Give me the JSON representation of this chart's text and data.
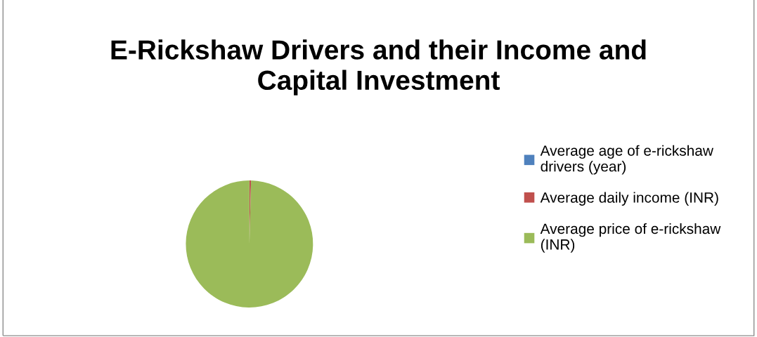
{
  "chart_data": {
    "type": "pie",
    "title": "E-Rickshaw Drivers and their Income and\nCapital Investment",
    "categories": [
      "Average age of e-rickshaw drivers (year)",
      "Average daily income (INR)",
      "Average price of e-rickshaw (INR)"
    ],
    "values": [
      null,
      0.4,
      99.57
    ],
    "colors": [
      "#4f81bd",
      "#c0504d",
      "#9bbb59"
    ],
    "legend": "right"
  }
}
